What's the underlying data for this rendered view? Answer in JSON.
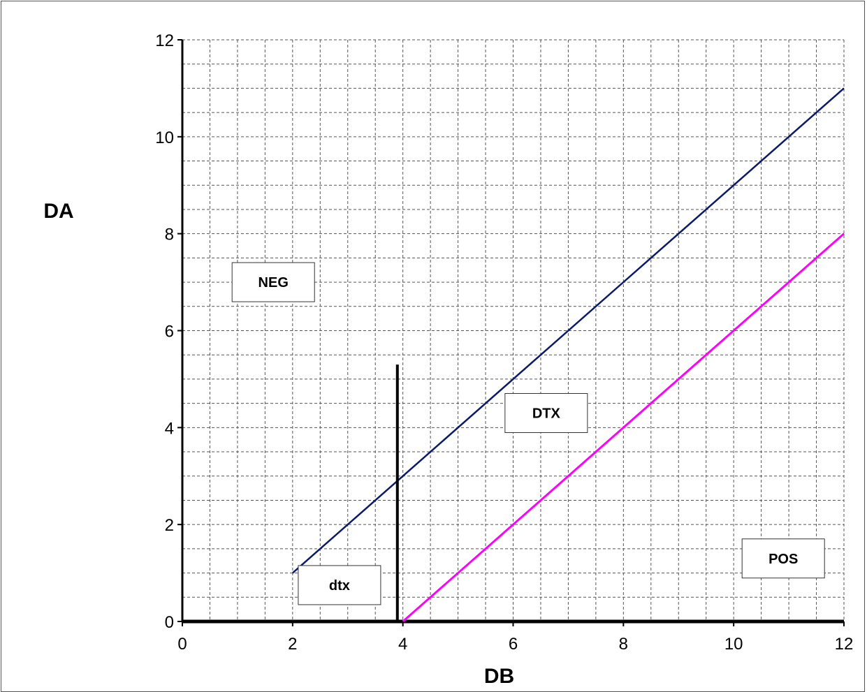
{
  "chart_data": {
    "type": "line",
    "xlabel": "DB",
    "ylabel": "DA",
    "xlim": [
      0,
      12
    ],
    "ylim": [
      0,
      12
    ],
    "x_ticks": [
      0,
      2,
      4,
      6,
      8,
      10,
      12
    ],
    "y_ticks": [
      0,
      2,
      4,
      6,
      8,
      10,
      12
    ],
    "grid": true,
    "grid_minor_step": 0.5,
    "series": [
      {
        "color": "#0a1a6e",
        "x": [
          2,
          12
        ],
        "y": [
          1,
          11
        ]
      },
      {
        "color": "#ff00ff",
        "x": [
          4,
          12
        ],
        "y": [
          0,
          8
        ]
      },
      {
        "color": "#000000",
        "x": [
          3.9,
          3.9
        ],
        "y": [
          0,
          5.3
        ]
      }
    ],
    "annotations": [
      {
        "text": "NEG",
        "x": 1.65,
        "y": 7.0
      },
      {
        "text": "DTX",
        "x": 6.6,
        "y": 4.3
      },
      {
        "text": "POS",
        "x": 10.9,
        "y": 1.3
      },
      {
        "text": "dtx",
        "x": 2.85,
        "y": 0.75
      }
    ]
  }
}
